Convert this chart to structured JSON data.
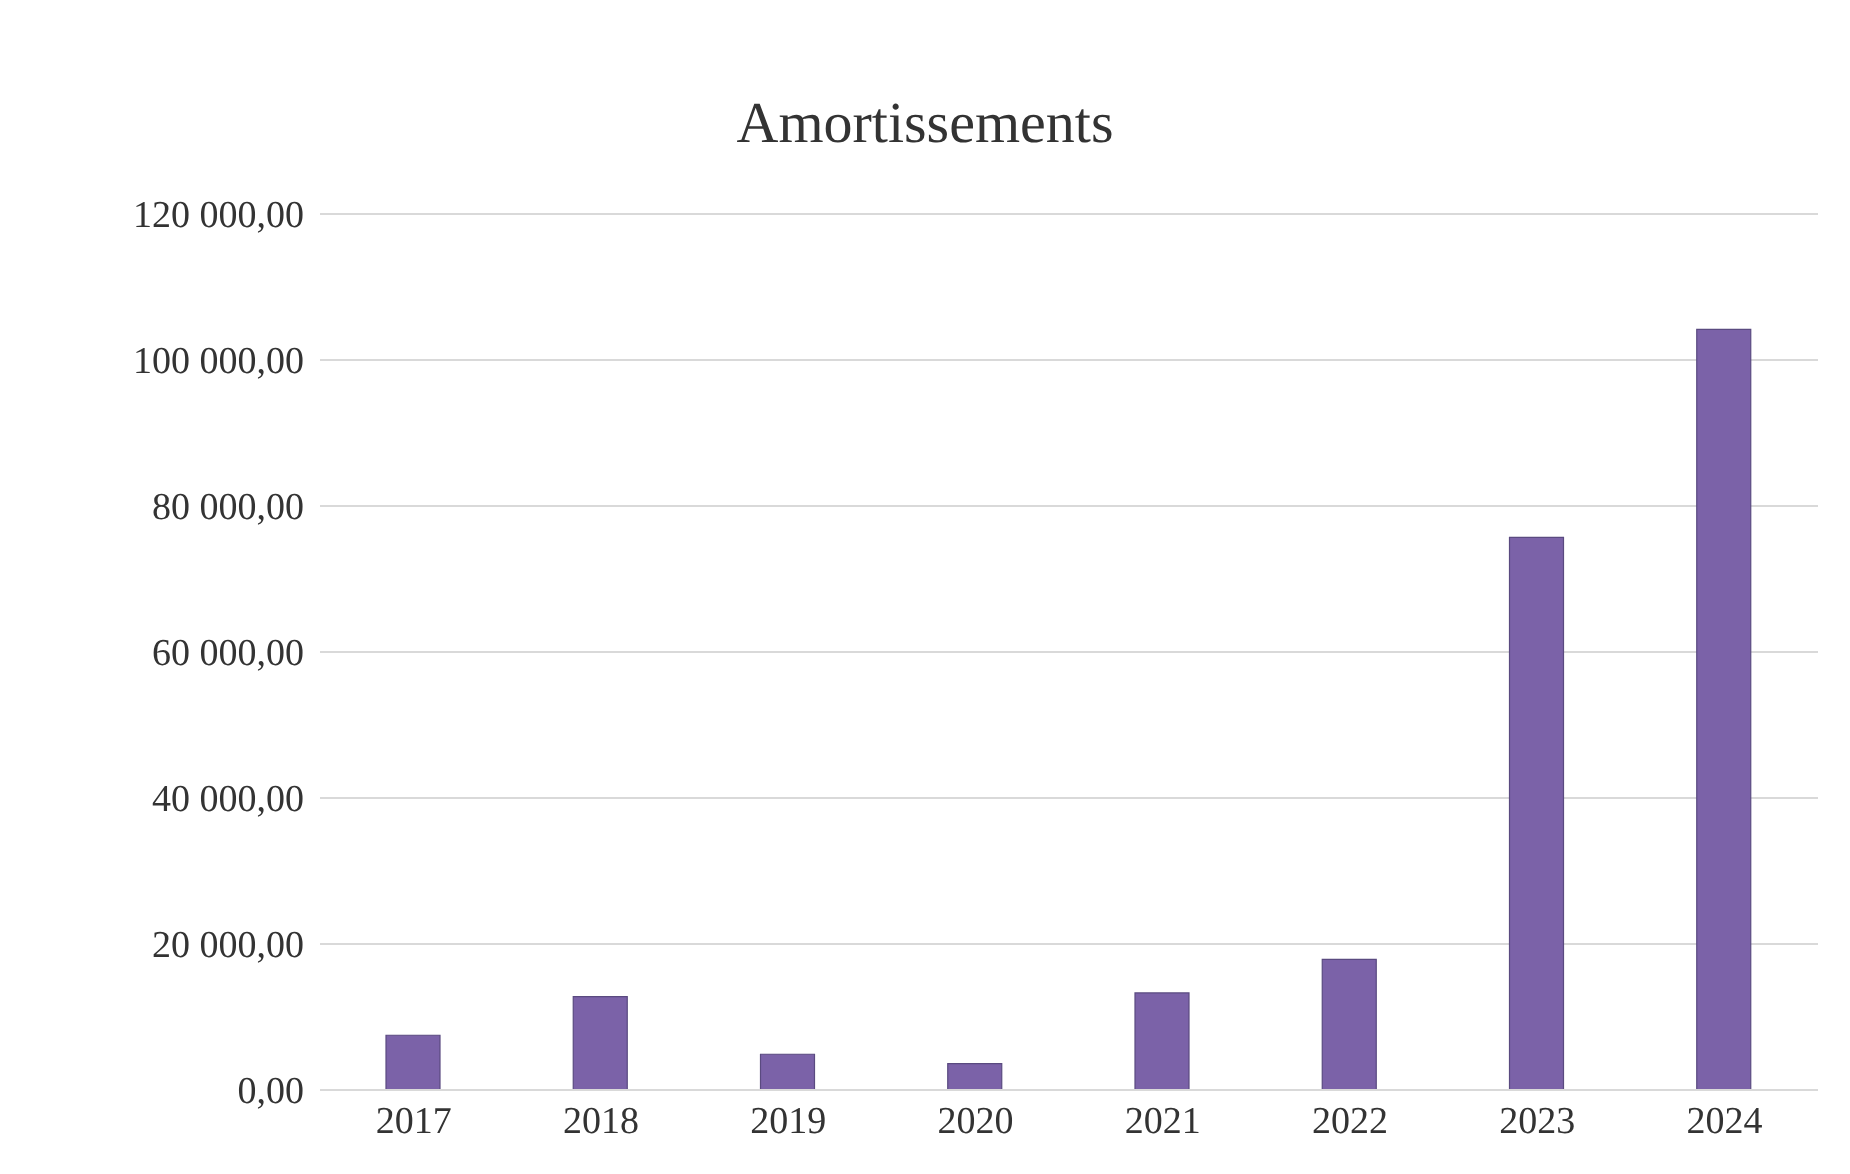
{
  "chart_data": {
    "type": "bar",
    "title": "Amortissements",
    "categories": [
      "2017",
      "2018",
      "2019",
      "2020",
      "2021",
      "2022",
      "2023",
      "2024"
    ],
    "values": [
      7500,
      12800,
      4900,
      3600,
      13300,
      17900,
      75700,
      104200
    ],
    "color": "#7b62a8",
    "ylim": [
      0,
      120000
    ],
    "yticks": [
      {
        "value": 0,
        "label": "0,00"
      },
      {
        "value": 20000,
        "label": "20 000,00"
      },
      {
        "value": 40000,
        "label": "40 000,00"
      },
      {
        "value": 60000,
        "label": "60 000,00"
      },
      {
        "value": 80000,
        "label": "80 000,00"
      },
      {
        "value": 100000,
        "label": "100 000,00"
      },
      {
        "value": 120000,
        "label": "120 000,00"
      }
    ],
    "grid": "y"
  }
}
